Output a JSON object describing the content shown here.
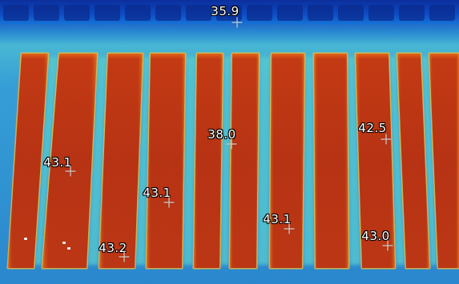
{
  "thermal_image": {
    "colors": {
      "cold_background": "#0b2f9c",
      "cool_band": "#1f9fe8",
      "gap_glow": "#4fd6e0",
      "hot_strip": "#c33612",
      "hot_strip_core": "#b02c10",
      "strip_edge": "#f07a1a"
    },
    "readouts": [
      {
        "value": "35.9"
      },
      {
        "value": "38.0"
      },
      {
        "value": "42.5"
      },
      {
        "value": "43.1"
      },
      {
        "value": "43.1"
      },
      {
        "value": "43.1"
      },
      {
        "value": "43.2"
      },
      {
        "value": "43.0"
      }
    ]
  }
}
